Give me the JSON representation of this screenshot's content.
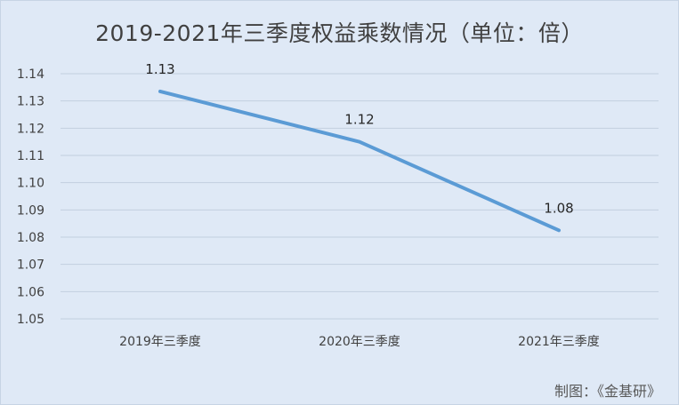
{
  "chart_data": {
    "type": "line",
    "title": "2019-2021年三季度权益乘数情况（单位：倍）",
    "categories": [
      "2019年三季度",
      "2020年三季度",
      "2021年三季度"
    ],
    "series": [
      {
        "values": [
          1.1335,
          1.115,
          1.0825
        ],
        "labels": [
          "1.13",
          "1.12",
          "1.08"
        ],
        "color": "#5b9bd5"
      }
    ],
    "ylim": [
      1.05,
      1.14
    ],
    "yticks": [
      "1.14",
      "1.13",
      "1.12",
      "1.11",
      "1.10",
      "1.09",
      "1.08",
      "1.07",
      "1.06",
      "1.05"
    ],
    "grid": true,
    "legend": "none"
  },
  "credit": "制图：《金基研》"
}
